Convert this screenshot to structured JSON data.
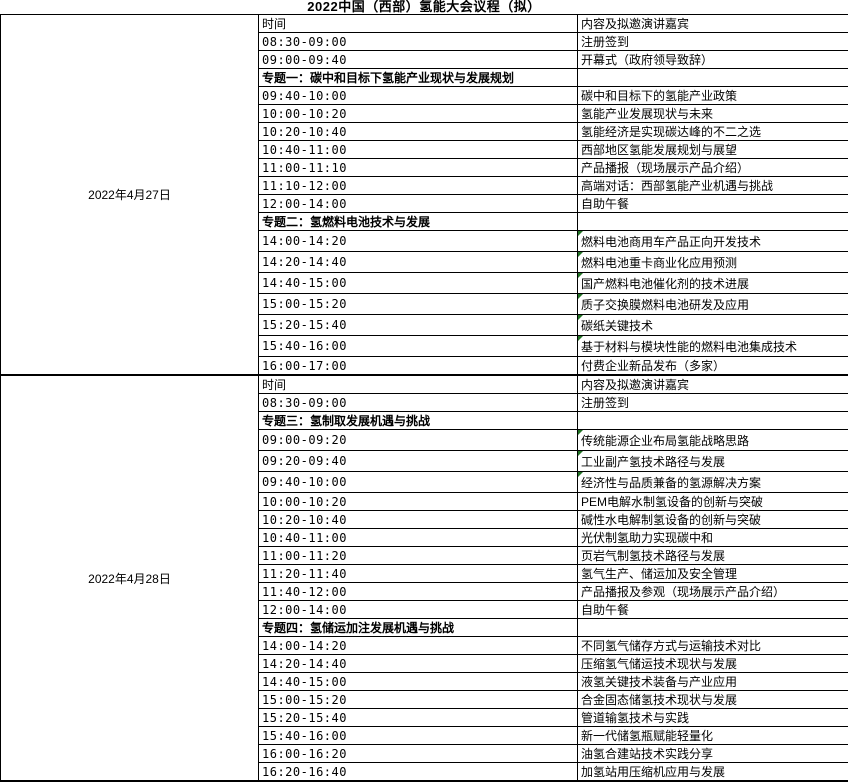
{
  "title": "2022中国（西部）氢能大会议程（拟）",
  "colors": {
    "grid_line": "#000000",
    "background": "#ffffff",
    "marker_green": "#217324"
  },
  "column_headers": {
    "time": "时间",
    "content": "内容及拟邀演讲嘉宾"
  },
  "days": [
    {
      "date": "2022年4月27日",
      "rows": [
        {
          "type": "header",
          "time": "时间",
          "content": "内容及拟邀演讲嘉宾"
        },
        {
          "type": "item",
          "time": "08:30-09:00",
          "content": "注册签到"
        },
        {
          "type": "item",
          "time": "09:00-09:40",
          "content": "开幕式（政府领导致辞）"
        },
        {
          "type": "session",
          "time": "专题一：碳中和目标下氢能产业现状与发展规划",
          "content": ""
        },
        {
          "type": "item",
          "time": "09:40-10:00",
          "content": "碳中和目标下的氢能产业政策"
        },
        {
          "type": "item",
          "time": "10:00-10:20",
          "content": "氢能产业发展现状与未来"
        },
        {
          "type": "item",
          "time": "10:20-10:40",
          "content": "氢能经济是实现碳达峰的不二之选"
        },
        {
          "type": "item",
          "time": "10:40-11:00",
          "content": "西部地区氢能发展规划与展望"
        },
        {
          "type": "item",
          "time": "11:00-11:10",
          "content": "产品播报（现场展示产品介绍）"
        },
        {
          "type": "item",
          "time": "11:10-12:00",
          "content": "高端对话：西部氢能产业机遇与挑战"
        },
        {
          "type": "item",
          "time": "12:00-14:00",
          "content": "自助午餐"
        },
        {
          "type": "session",
          "time": "专题二：氢燃料电池技术与发展",
          "content": ""
        },
        {
          "type": "item",
          "time": "14:00-14:20",
          "content": "燃料电池商用车产品正向开发技术",
          "tall": true,
          "marker": true
        },
        {
          "type": "item",
          "time": "14:20-14:40",
          "content": "燃料电池重卡商业化应用预测",
          "tall": true,
          "marker": true
        },
        {
          "type": "item",
          "time": "14:40-15:00",
          "content": "国产燃料电池催化剂的技术进展",
          "tall": true,
          "marker": true
        },
        {
          "type": "item",
          "time": "15:00-15:20",
          "content": "质子交换膜燃料电池研发及应用",
          "tall": true,
          "marker": true
        },
        {
          "type": "item",
          "time": "15:20-15:40",
          "content": "碳纸关键技术",
          "tall": true,
          "marker": true
        },
        {
          "type": "item",
          "time": "15:40-16:00",
          "content": "基于材料与模块性能的燃料电池集成技术",
          "tall": true,
          "marker": true
        },
        {
          "type": "item",
          "time": "16:00-17:00",
          "content": "付费企业新品发布（多家）"
        }
      ]
    },
    {
      "date": "2022年4月28日",
      "rows": [
        {
          "type": "header",
          "time": "时间",
          "content": "内容及拟邀演讲嘉宾"
        },
        {
          "type": "item",
          "time": "08:30-09:00",
          "content": "注册签到"
        },
        {
          "type": "session",
          "time": "专题三：氢制取发展机遇与挑战",
          "content": ""
        },
        {
          "type": "item",
          "time": "09:00-09:20",
          "content": "传统能源企业布局氢能战略思路",
          "tall": true,
          "marker": true
        },
        {
          "type": "item",
          "time": "09:20-09:40",
          "content": "工业副产氢技术路径与发展",
          "tall": true,
          "marker": true
        },
        {
          "type": "item",
          "time": "09:40-10:00",
          "content": "经济性与品质兼备的氢源解决方案",
          "tall": true,
          "marker": true
        },
        {
          "type": "item",
          "time": "10:00-10:20",
          "content": "PEM电解水制氢设备的创新与突破"
        },
        {
          "type": "item",
          "time": "10:20-10:40",
          "content": "碱性水电解制氢设备的创新与突破"
        },
        {
          "type": "item",
          "time": "10:40-11:00",
          "content": "光伏制氢助力实现碳中和"
        },
        {
          "type": "item",
          "time": "11:00-11:20",
          "content": "页岩气制氢技术路径与发展"
        },
        {
          "type": "item",
          "time": "11:20-11:40",
          "content": "氢气生产、储运加及安全管理"
        },
        {
          "type": "item",
          "time": "11:40-12:00",
          "content": "产品播报及参观（现场展示产品介绍）"
        },
        {
          "type": "item",
          "time": "12:00-14:00",
          "content": "自助午餐"
        },
        {
          "type": "session",
          "time": "专题四：氢储运加注发展机遇与挑战",
          "content": ""
        },
        {
          "type": "item",
          "time": "14:00-14:20",
          "content": "不同氢气储存方式与运输技术对比"
        },
        {
          "type": "item",
          "time": "14:20-14:40",
          "content": "压缩氢气储运技术现状与发展"
        },
        {
          "type": "item",
          "time": "14:40-15:00",
          "content": "液氢关键技术装备与产业应用"
        },
        {
          "type": "item",
          "time": "15:00-15:20",
          "content": "合金固态储氢技术现状与发展"
        },
        {
          "type": "item",
          "time": "15:20-15:40",
          "content": "管道输氢技术与实践"
        },
        {
          "type": "item",
          "time": "15:40-16:00",
          "content": "新一代储氢瓶赋能轻量化"
        },
        {
          "type": "item",
          "time": "16:00-16:20",
          "content": "油氢合建站技术实践分享"
        },
        {
          "type": "item",
          "time": "16:20-16:40",
          "content": "加氢站用压缩机应用与发展"
        }
      ]
    }
  ]
}
